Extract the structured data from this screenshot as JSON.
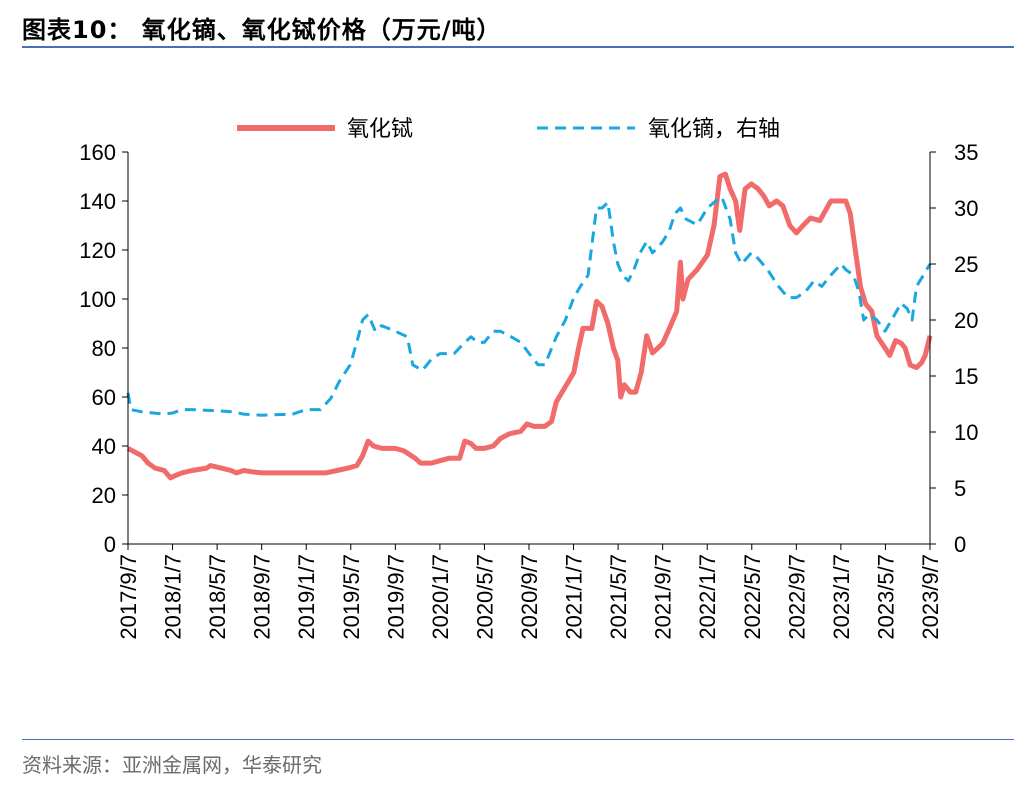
{
  "header": {
    "title": "图表10：  氧化镝、氧化铽价格（万元/吨）"
  },
  "footer": {
    "source": "资料来源：亚洲金属网，华泰研究"
  },
  "colors": {
    "rule": "#4a6fb5",
    "terbium": "#f26b6b",
    "dysprosium": "#1aa7e0",
    "axis": "#000000"
  },
  "chart_data": {
    "type": "line",
    "xlabel": "",
    "ylabel_left": "",
    "ylabel_right": "",
    "xlim": [
      "2017-09-07",
      "2023-09-07"
    ],
    "x_ticks": [
      "2017/9/7",
      "2018/1/7",
      "2018/5/7",
      "2018/9/7",
      "2019/1/7",
      "2019/5/7",
      "2019/9/7",
      "2020/1/7",
      "2020/5/7",
      "2020/9/7",
      "2021/1/7",
      "2021/5/7",
      "2021/9/7",
      "2022/1/7",
      "2022/5/7",
      "2022/9/7",
      "2023/1/7",
      "2023/5/7",
      "2023/9/7"
    ],
    "y_left": {
      "min": 0,
      "max": 160,
      "ticks": [
        0,
        20,
        40,
        60,
        80,
        100,
        120,
        140,
        160
      ]
    },
    "y_right": {
      "min": 0,
      "max": 35,
      "ticks": [
        0,
        5,
        10,
        15,
        20,
        25,
        30,
        35
      ]
    },
    "legend": {
      "placement": "top",
      "entries": [
        "氧化铽",
        "氧化镝，右轴"
      ]
    },
    "grid": false,
    "series": [
      {
        "name": "氧化铽",
        "axis": "left",
        "style": "solid",
        "points": [
          [
            "2017-09-07",
            39
          ],
          [
            "2017-10-15",
            36
          ],
          [
            "2017-11-01",
            33
          ],
          [
            "2017-11-20",
            31
          ],
          [
            "2017-12-15",
            30
          ],
          [
            "2018-01-01",
            27
          ],
          [
            "2018-01-15",
            28
          ],
          [
            "2018-02-01",
            29
          ],
          [
            "2018-03-01",
            30
          ],
          [
            "2018-04-10",
            31
          ],
          [
            "2018-04-20",
            32
          ],
          [
            "2018-05-20",
            31
          ],
          [
            "2018-06-15",
            30
          ],
          [
            "2018-07-01",
            29
          ],
          [
            "2018-07-20",
            30
          ],
          [
            "2018-08-10",
            29.5
          ],
          [
            "2018-09-07",
            29
          ],
          [
            "2018-10-15",
            29
          ],
          [
            "2018-12-01",
            29
          ],
          [
            "2019-01-07",
            29
          ],
          [
            "2019-03-01",
            29
          ],
          [
            "2019-04-01",
            30
          ],
          [
            "2019-05-01",
            31
          ],
          [
            "2019-05-25",
            32
          ],
          [
            "2019-06-10",
            36
          ],
          [
            "2019-06-25",
            42
          ],
          [
            "2019-07-10",
            40
          ],
          [
            "2019-08-01",
            39
          ],
          [
            "2019-09-07",
            39
          ],
          [
            "2019-10-01",
            38
          ],
          [
            "2019-11-01",
            35
          ],
          [
            "2019-11-15",
            33
          ],
          [
            "2019-12-15",
            33
          ],
          [
            "2020-01-07",
            34
          ],
          [
            "2020-02-01",
            35
          ],
          [
            "2020-03-01",
            35
          ],
          [
            "2020-03-15",
            42
          ],
          [
            "2020-04-01",
            41
          ],
          [
            "2020-04-15",
            39
          ],
          [
            "2020-05-07",
            39
          ],
          [
            "2020-06-01",
            40
          ],
          [
            "2020-06-20",
            43
          ],
          [
            "2020-07-15",
            45
          ],
          [
            "2020-08-15",
            46
          ],
          [
            "2020-09-01",
            49
          ],
          [
            "2020-09-20",
            48
          ],
          [
            "2020-10-20",
            48
          ],
          [
            "2020-11-07",
            50
          ],
          [
            "2020-11-20",
            58
          ],
          [
            "2020-12-10",
            63
          ],
          [
            "2021-01-07",
            70
          ],
          [
            "2021-01-20",
            80
          ],
          [
            "2021-02-01",
            88
          ],
          [
            "2021-02-25",
            88
          ],
          [
            "2021-03-10",
            99
          ],
          [
            "2021-03-25",
            97
          ],
          [
            "2021-04-10",
            90
          ],
          [
            "2021-04-25",
            80
          ],
          [
            "2021-05-07",
            75
          ],
          [
            "2021-05-15",
            60
          ],
          [
            "2021-05-25",
            65
          ],
          [
            "2021-06-10",
            62
          ],
          [
            "2021-06-25",
            62
          ],
          [
            "2021-07-10",
            70
          ],
          [
            "2021-07-25",
            85
          ],
          [
            "2021-08-10",
            78
          ],
          [
            "2021-08-25",
            80
          ],
          [
            "2021-09-07",
            82
          ],
          [
            "2021-09-25",
            88
          ],
          [
            "2021-10-15",
            95
          ],
          [
            "2021-10-25",
            115
          ],
          [
            "2021-11-01",
            100
          ],
          [
            "2021-11-15",
            108
          ],
          [
            "2021-12-10",
            112
          ],
          [
            "2022-01-07",
            118
          ],
          [
            "2022-01-25",
            130
          ],
          [
            "2022-02-10",
            150
          ],
          [
            "2022-02-25",
            151
          ],
          [
            "2022-03-10",
            145
          ],
          [
            "2022-03-25",
            140
          ],
          [
            "2022-04-05",
            128
          ],
          [
            "2022-04-20",
            145
          ],
          [
            "2022-05-07",
            147
          ],
          [
            "2022-05-25",
            145
          ],
          [
            "2022-06-10",
            142
          ],
          [
            "2022-06-25",
            138
          ],
          [
            "2022-07-15",
            140
          ],
          [
            "2022-08-01",
            138
          ],
          [
            "2022-08-20",
            130
          ],
          [
            "2022-09-07",
            127
          ],
          [
            "2022-09-25",
            130
          ],
          [
            "2022-10-15",
            133
          ],
          [
            "2022-11-10",
            132
          ],
          [
            "2022-11-25",
            136
          ],
          [
            "2022-12-10",
            140
          ],
          [
            "2023-01-07",
            140
          ],
          [
            "2023-01-20",
            140
          ],
          [
            "2023-02-01",
            135
          ],
          [
            "2023-02-15",
            120
          ],
          [
            "2023-03-01",
            105
          ],
          [
            "2023-03-15",
            98
          ],
          [
            "2023-04-01",
            95
          ],
          [
            "2023-04-15",
            85
          ],
          [
            "2023-05-07",
            80
          ],
          [
            "2023-05-20",
            77
          ],
          [
            "2023-06-05",
            83
          ],
          [
            "2023-06-20",
            82
          ],
          [
            "2023-07-01",
            80
          ],
          [
            "2023-07-15",
            73
          ],
          [
            "2023-08-01",
            72
          ],
          [
            "2023-08-15",
            74
          ],
          [
            "2023-08-25",
            77
          ],
          [
            "2023-09-07",
            85
          ]
        ]
      },
      {
        "name": "氧化镝，右轴",
        "axis": "right",
        "style": "dashed",
        "points": [
          [
            "2017-09-07",
            13.5
          ],
          [
            "2017-09-15",
            12
          ],
          [
            "2017-10-15",
            11.8
          ],
          [
            "2017-12-15",
            11.6
          ],
          [
            "2018-01-07",
            11.7
          ],
          [
            "2018-02-01",
            12
          ],
          [
            "2018-03-01",
            12
          ],
          [
            "2018-05-07",
            11.9
          ],
          [
            "2018-06-20",
            11.8
          ],
          [
            "2018-07-20",
            11.6
          ],
          [
            "2018-09-07",
            11.5
          ],
          [
            "2018-12-01",
            11.6
          ],
          [
            "2019-01-07",
            12
          ],
          [
            "2019-02-15",
            12
          ],
          [
            "2019-03-15",
            13
          ],
          [
            "2019-04-07",
            14.5
          ],
          [
            "2019-05-07",
            16
          ],
          [
            "2019-05-25",
            18
          ],
          [
            "2019-06-10",
            20
          ],
          [
            "2019-06-25",
            20.5
          ],
          [
            "2019-07-15",
            19
          ],
          [
            "2019-08-01",
            19.5
          ],
          [
            "2019-09-07",
            19
          ],
          [
            "2019-10-10",
            18.5
          ],
          [
            "2019-10-25",
            16
          ],
          [
            "2019-11-20",
            15.5
          ],
          [
            "2019-12-15",
            16.5
          ],
          [
            "2020-01-07",
            17
          ],
          [
            "2020-02-15",
            17
          ],
          [
            "2020-03-15",
            18
          ],
          [
            "2020-04-01",
            18.5
          ],
          [
            "2020-04-20",
            18
          ],
          [
            "2020-05-07",
            18
          ],
          [
            "2020-06-01",
            19
          ],
          [
            "2020-06-20",
            19
          ],
          [
            "2020-07-20",
            18.5
          ],
          [
            "2020-08-15",
            18
          ],
          [
            "2020-09-07",
            17
          ],
          [
            "2020-10-01",
            16
          ],
          [
            "2020-10-20",
            16
          ],
          [
            "2020-11-20",
            18.5
          ],
          [
            "2020-12-15",
            20
          ],
          [
            "2021-01-07",
            22
          ],
          [
            "2021-01-25",
            23
          ],
          [
            "2021-02-15",
            24
          ],
          [
            "2021-03-10",
            30
          ],
          [
            "2021-03-25",
            30
          ],
          [
            "2021-04-10",
            30.5
          ],
          [
            "2021-04-25",
            27
          ],
          [
            "2021-05-07",
            25
          ],
          [
            "2021-05-20",
            24
          ],
          [
            "2021-06-05",
            23.5
          ],
          [
            "2021-06-20",
            24.5
          ],
          [
            "2021-07-07",
            26
          ],
          [
            "2021-07-25",
            27
          ],
          [
            "2021-08-10",
            26
          ],
          [
            "2021-08-25",
            26.5
          ],
          [
            "2021-09-07",
            27
          ],
          [
            "2021-09-25",
            28
          ],
          [
            "2021-10-10",
            29.5
          ],
          [
            "2021-10-25",
            30
          ],
          [
            "2021-11-10",
            29
          ],
          [
            "2021-12-10",
            28.5
          ],
          [
            "2022-01-07",
            30
          ],
          [
            "2022-01-25",
            30.5
          ],
          [
            "2022-02-15",
            31
          ],
          [
            "2022-03-10",
            29
          ],
          [
            "2022-03-25",
            26
          ],
          [
            "2022-04-10",
            25
          ],
          [
            "2022-05-07",
            26
          ],
          [
            "2022-05-25",
            25.5
          ],
          [
            "2022-06-20",
            24.5
          ],
          [
            "2022-07-20",
            23
          ],
          [
            "2022-08-15",
            22
          ],
          [
            "2022-09-07",
            22
          ],
          [
            "2022-10-01",
            22.5
          ],
          [
            "2022-10-25",
            23.5
          ],
          [
            "2022-11-15",
            23
          ],
          [
            "2022-12-10",
            24
          ],
          [
            "2023-01-07",
            25
          ],
          [
            "2023-01-20",
            24.5
          ],
          [
            "2023-02-10",
            24
          ],
          [
            "2023-02-25",
            22.5
          ],
          [
            "2023-03-10",
            20
          ],
          [
            "2023-03-25",
            20.5
          ],
          [
            "2023-04-15",
            20
          ],
          [
            "2023-05-07",
            19
          ],
          [
            "2023-05-25",
            20
          ],
          [
            "2023-06-20",
            21.5
          ],
          [
            "2023-07-07",
            21
          ],
          [
            "2023-07-20",
            20
          ],
          [
            "2023-08-01",
            23
          ],
          [
            "2023-08-20",
            24
          ],
          [
            "2023-09-07",
            25
          ]
        ]
      }
    ]
  }
}
